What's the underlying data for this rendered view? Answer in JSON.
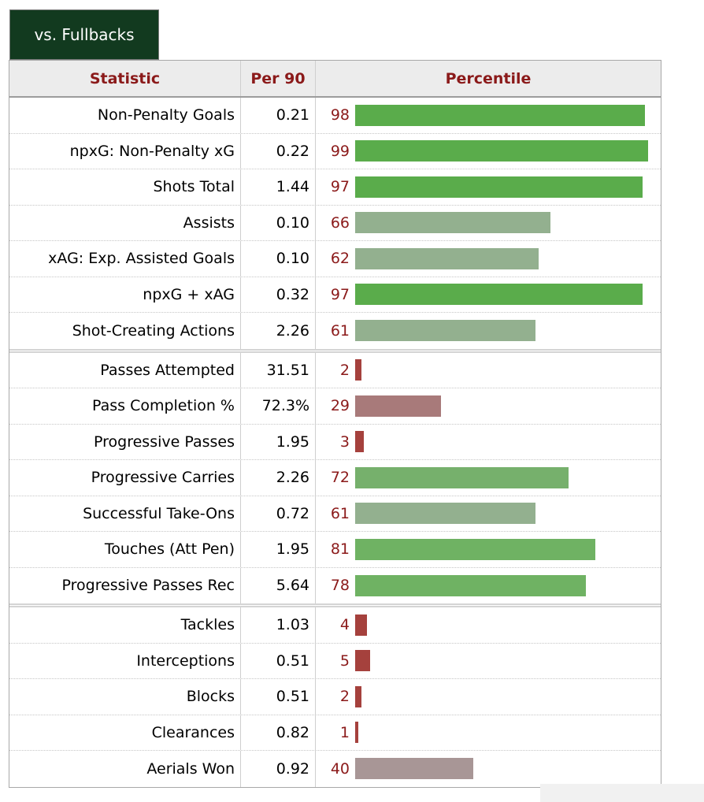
{
  "tab": {
    "label": "vs. Fullbacks"
  },
  "table": {
    "headers": {
      "statistic": "Statistic",
      "per90": "Per 90",
      "percentile": "Percentile"
    },
    "groups": [
      [
        {
          "stat": "Non-Penalty Goals",
          "per90": "0.21",
          "percentile": 98,
          "color": "#5aac4b"
        },
        {
          "stat": "npxG: Non-Penalty xG",
          "per90": "0.22",
          "percentile": 99,
          "color": "#5aac4b"
        },
        {
          "stat": "Shots Total",
          "per90": "1.44",
          "percentile": 97,
          "color": "#5aac4b"
        },
        {
          "stat": "Assists",
          "per90": "0.10",
          "percentile": 66,
          "color": "#93b08f"
        },
        {
          "stat": "xAG: Exp. Assisted Goals",
          "per90": "0.10",
          "percentile": 62,
          "color": "#93b08f"
        },
        {
          "stat": "npxG + xAG",
          "per90": "0.32",
          "percentile": 97,
          "color": "#5aac4b"
        },
        {
          "stat": "Shot-Creating Actions",
          "per90": "2.26",
          "percentile": 61,
          "color": "#93b08f"
        }
      ],
      [
        {
          "stat": "Passes Attempted",
          "per90": "31.51",
          "percentile": 2,
          "color": "#a5413d"
        },
        {
          "stat": "Pass Completion %",
          "per90": "72.3%",
          "percentile": 29,
          "color": "#a87a7a"
        },
        {
          "stat": "Progressive Passes",
          "per90": "1.95",
          "percentile": 3,
          "color": "#a5413d"
        },
        {
          "stat": "Progressive Carries",
          "per90": "2.26",
          "percentile": 72,
          "color": "#76b06c"
        },
        {
          "stat": "Successful Take-Ons",
          "per90": "0.72",
          "percentile": 61,
          "color": "#93b08f"
        },
        {
          "stat": "Touches (Att Pen)",
          "per90": "1.95",
          "percentile": 81,
          "color": "#6fb263"
        },
        {
          "stat": "Progressive Passes Rec",
          "per90": "5.64",
          "percentile": 78,
          "color": "#6fb263"
        }
      ],
      [
        {
          "stat": "Tackles",
          "per90": "1.03",
          "percentile": 4,
          "color": "#a5413d"
        },
        {
          "stat": "Interceptions",
          "per90": "0.51",
          "percentile": 5,
          "color": "#a5413d"
        },
        {
          "stat": "Blocks",
          "per90": "0.51",
          "percentile": 2,
          "color": "#a5413d"
        },
        {
          "stat": "Clearances",
          "per90": "0.82",
          "percentile": 1,
          "color": "#a5413d"
        },
        {
          "stat": "Aerials Won",
          "per90": "0.92",
          "percentile": 40,
          "color": "#a89696"
        }
      ]
    ]
  }
}
